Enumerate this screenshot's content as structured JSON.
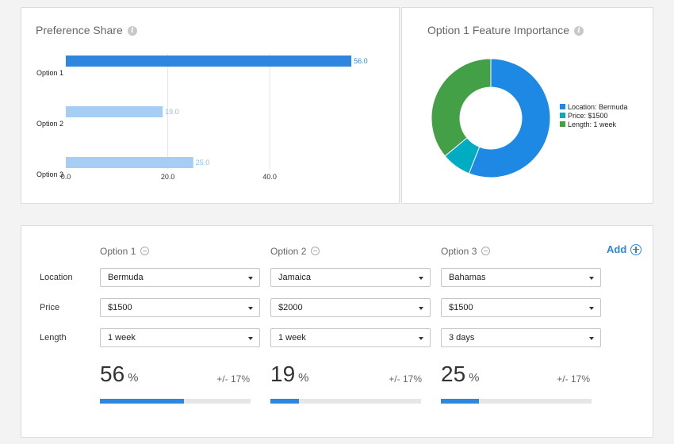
{
  "preference_share": {
    "title": "Preference Share"
  },
  "feature_importance": {
    "title": "Option 1 Feature Importance"
  },
  "chart_data": [
    {
      "type": "bar",
      "orientation": "horizontal",
      "title": "Preference Share",
      "categories": [
        "Option 1",
        "Option 2",
        "Option 3"
      ],
      "values": [
        56.0,
        19.0,
        25.0
      ],
      "value_labels": [
        "56.0",
        "19.0",
        "25.0"
      ],
      "xticks": [
        "0.0",
        "20.0",
        "40.0"
      ],
      "xlim": [
        0,
        58
      ],
      "grid": true,
      "colors": [
        "#2e86de",
        "#a6cdf3",
        "#a6cdf3"
      ],
      "label_colors": [
        "#2e86de",
        "#8fbfee",
        "#8fbfee"
      ]
    },
    {
      "type": "pie",
      "donut": true,
      "title": "Option 1 Feature Importance",
      "labels": [
        "Location: Bermuda",
        "Price: $1500",
        "Length: 1 week"
      ],
      "values": [
        56,
        8,
        36
      ],
      "colors": [
        "#1e88e5",
        "#00acc1",
        "#43a047"
      ],
      "legend_position": "right"
    }
  ],
  "simulator": {
    "add_label": "Add",
    "row_labels": [
      "Location",
      "Price",
      "Length"
    ],
    "options": [
      {
        "header": "Option 1",
        "location": "Bermuda",
        "price": "$1500",
        "length": "1 week",
        "share": "56",
        "share_value": 56,
        "pct_sign": "%",
        "moe": "+/- 17%"
      },
      {
        "header": "Option 2",
        "location": "Jamaica",
        "price": "$2000",
        "length": "1 week",
        "share": "19",
        "share_value": 19,
        "pct_sign": "%",
        "moe": "+/- 17%"
      },
      {
        "header": "Option 3",
        "location": "Bahamas",
        "price": "$1500",
        "length": "3 days",
        "share": "25",
        "share_value": 25,
        "pct_sign": "%",
        "moe": "+/- 17%"
      }
    ]
  }
}
